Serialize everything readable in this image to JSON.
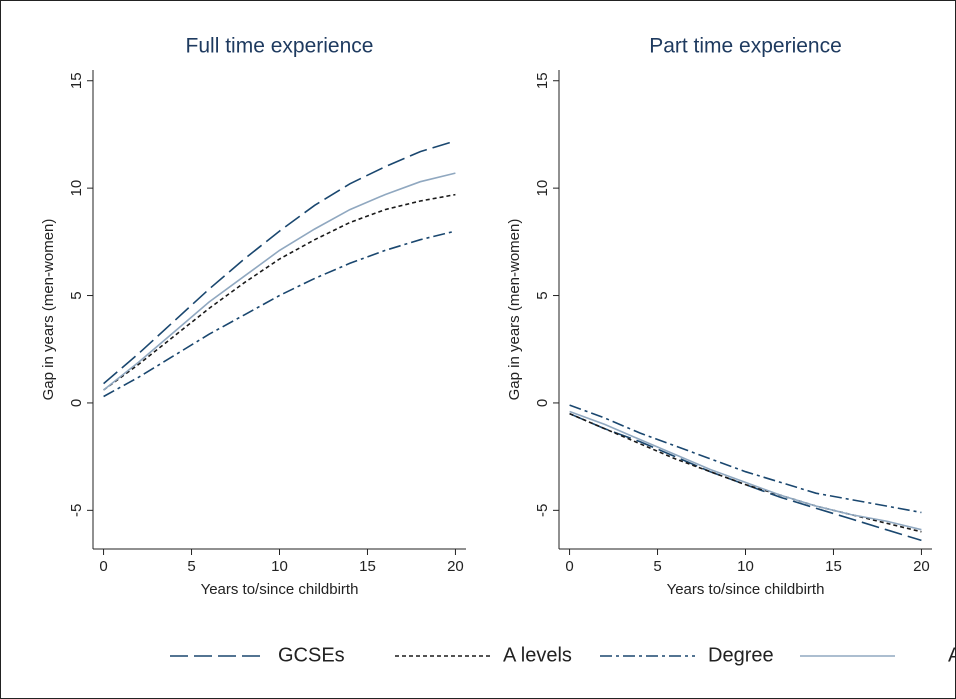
{
  "chart_data": [
    {
      "type": "line",
      "title": "Full time experience",
      "x_label": "Years to/since childbirth",
      "y_label": "Gap in years (men-women)",
      "x": [
        0,
        2,
        4,
        6,
        8,
        10,
        12,
        14,
        16,
        18,
        20
      ],
      "series": [
        {
          "name": "GCSEs",
          "color": "#1a476f",
          "dash": "long",
          "values": [
            0.9,
            2.3,
            3.8,
            5.3,
            6.7,
            8.0,
            9.2,
            10.2,
            11.0,
            11.7,
            12.2
          ]
        },
        {
          "name": "A levels",
          "color": "#1a1a1a",
          "dash": "short",
          "values": [
            0.6,
            1.8,
            3.1,
            4.4,
            5.6,
            6.7,
            7.6,
            8.4,
            9.0,
            9.4,
            9.7
          ]
        },
        {
          "name": "Degree",
          "color": "#1a476f",
          "dash": "dashdot",
          "values": [
            0.3,
            1.2,
            2.2,
            3.2,
            4.1,
            5.0,
            5.8,
            6.5,
            7.1,
            7.6,
            8.0
          ]
        },
        {
          "name": "All",
          "color": "#90a8c0",
          "dash": "solid",
          "values": [
            0.6,
            1.9,
            3.3,
            4.7,
            5.9,
            7.1,
            8.1,
            9.0,
            9.7,
            10.3,
            10.7
          ]
        }
      ],
      "xlim": [
        -0.6,
        20.6
      ],
      "ylim": [
        -6.8,
        15.5
      ],
      "xticks": [
        0,
        5,
        10,
        15,
        20
      ],
      "yticks": [
        -5,
        0,
        5,
        10,
        15
      ]
    },
    {
      "type": "line",
      "title": "Part time experience",
      "x_label": "Years to/since childbirth",
      "y_label": "Gap in years (men-women)",
      "x": [
        0,
        2,
        4,
        6,
        8,
        10,
        12,
        14,
        16,
        18,
        20
      ],
      "series": [
        {
          "name": "GCSEs",
          "color": "#1a476f",
          "dash": "long",
          "values": [
            -0.5,
            -1.2,
            -1.8,
            -2.5,
            -3.2,
            -3.8,
            -4.4,
            -4.9,
            -5.4,
            -5.9,
            -6.4
          ]
        },
        {
          "name": "A levels",
          "color": "#1a1a1a",
          "dash": "short",
          "values": [
            -0.5,
            -1.2,
            -1.9,
            -2.6,
            -3.2,
            -3.8,
            -4.3,
            -4.8,
            -5.2,
            -5.6,
            -6.0
          ]
        },
        {
          "name": "Degree",
          "color": "#1a476f",
          "dash": "dashdot",
          "values": [
            -0.1,
            -0.7,
            -1.4,
            -2.0,
            -2.6,
            -3.2,
            -3.7,
            -4.2,
            -4.5,
            -4.8,
            -5.1
          ]
        },
        {
          "name": "All",
          "color": "#90a8c0",
          "dash": "solid",
          "values": [
            -0.4,
            -1.0,
            -1.7,
            -2.4,
            -3.1,
            -3.7,
            -4.3,
            -4.8,
            -5.2,
            -5.5,
            -5.9
          ]
        }
      ],
      "xlim": [
        -0.6,
        20.6
      ],
      "ylim": [
        -6.8,
        15.5
      ],
      "xticks": [
        0,
        5,
        10,
        15,
        20
      ],
      "yticks": [
        -5,
        0,
        5,
        10,
        15
      ]
    }
  ]
}
